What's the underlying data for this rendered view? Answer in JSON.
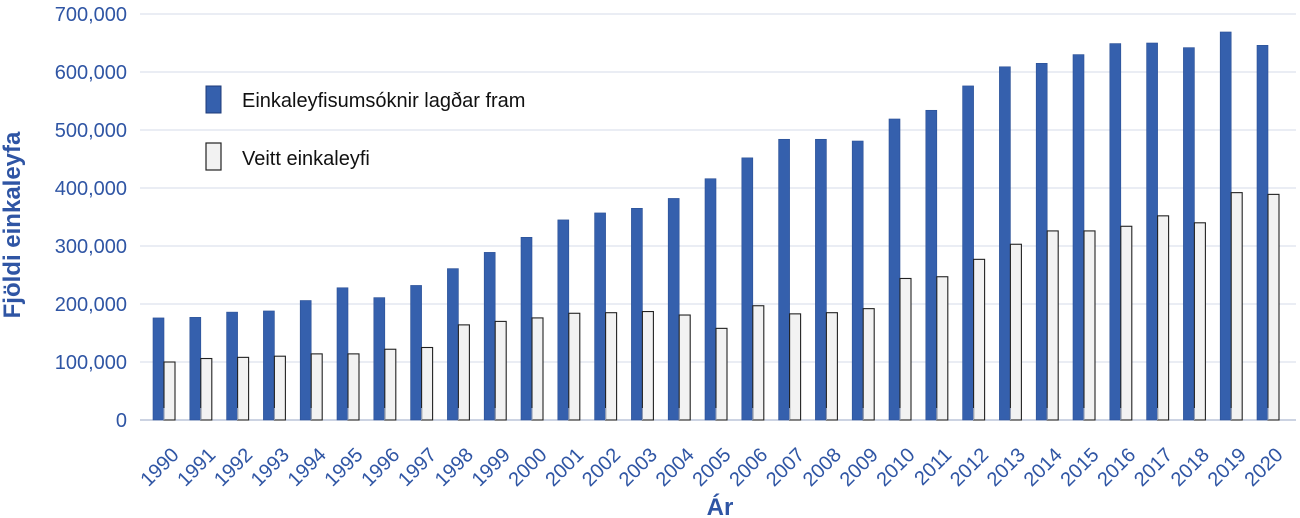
{
  "chart_data": {
    "type": "bar",
    "xlabel": "Ár",
    "ylabel": "Fjöldi einkaleyfa",
    "ylim": [
      0,
      700000
    ],
    "yticks": [
      "0",
      "100,000",
      "200,000",
      "300,000",
      "400,000",
      "500,000",
      "600,000",
      "700,000"
    ],
    "grid": true,
    "legend_position": "top-left",
    "categories": [
      "1990",
      "1991",
      "1992",
      "1993",
      "1994",
      "1995",
      "1996",
      "1997",
      "1998",
      "1999",
      "2000",
      "2001",
      "2002",
      "2003",
      "2004",
      "2005",
      "2006",
      "2007",
      "2008",
      "2009",
      "2010",
      "2011",
      "2012",
      "2013",
      "2014",
      "2015",
      "2016",
      "2017",
      "2018",
      "2019",
      "2020"
    ],
    "series": [
      {
        "name": "Einkaleyfisumsóknir lagðar fram",
        "color": "#3560ad",
        "values": [
          176000,
          177000,
          186000,
          188000,
          206000,
          228000,
          211000,
          232000,
          261000,
          289000,
          315000,
          345000,
          357000,
          365000,
          382000,
          416000,
          452000,
          484000,
          484000,
          481000,
          519000,
          534000,
          576000,
          609000,
          615000,
          630000,
          649000,
          650000,
          642000,
          669000,
          646000
        ]
      },
      {
        "name": "Veitt einkaleyfi",
        "color": "#f2f2f2",
        "values": [
          100000,
          106000,
          108000,
          110000,
          114000,
          114000,
          122000,
          125000,
          164000,
          170000,
          176000,
          184000,
          185000,
          187000,
          181000,
          158000,
          197000,
          183000,
          185000,
          192000,
          244000,
          247000,
          277000,
          303000,
          326000,
          326000,
          334000,
          352000,
          340000,
          392000,
          389000
        ]
      }
    ]
  }
}
